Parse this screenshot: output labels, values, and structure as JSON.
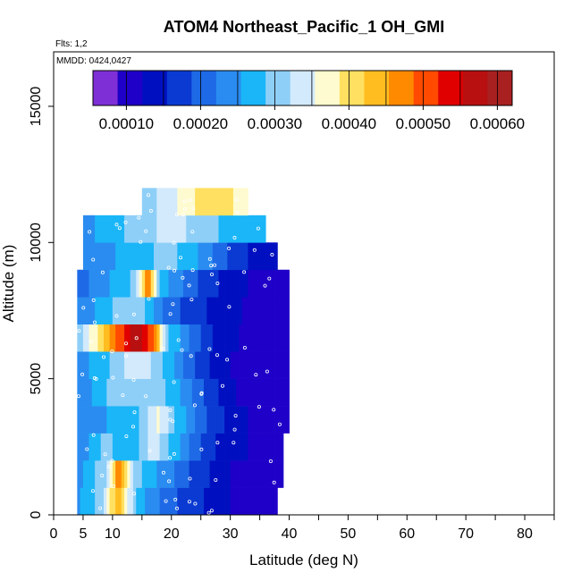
{
  "chart_data": {
    "type": "heatmap",
    "title": "ATOM4 Northeast_Pacific_1 OH_GMI",
    "notes": [
      "Flts: 1,2",
      "MMDD: 0424,0427"
    ],
    "xlabel": "Latitude (deg N)",
    "ylabel": "Altitude (m)",
    "xlim": [
      0,
      85
    ],
    "ylim": [
      0,
      17000
    ],
    "x_ticks": [
      0,
      5,
      10,
      20,
      30,
      40,
      50,
      60,
      70,
      80
    ],
    "y_ticks": [
      0,
      5000,
      10000,
      15000
    ],
    "colorbar": {
      "min": 5e-05,
      "max": 0.00062,
      "ticks": [
        "0.00010",
        "0.00020",
        "0.00030",
        "0.00040",
        "0.00050",
        "0.00060"
      ],
      "tick_values": [
        0.0001,
        0.0002,
        0.0003,
        0.0004,
        0.0005,
        0.0006
      ],
      "colors": [
        "#7f2fd6",
        "#1f00c8",
        "#0010c0",
        "#0a3ad2",
        "#1e6ae6",
        "#2a8cf0",
        "#1ab6f8",
        "#8ecff8",
        "#d2eafc",
        "#fffbd0",
        "#ffe060",
        "#ffbd20",
        "#ff8a00",
        "#ff4a00",
        "#e00000",
        "#b81010",
        "#a82020"
      ],
      "boundaries": [
        5.5e-05,
        0.0001,
        0.00015,
        0.0002,
        0.00025,
        0.0003,
        0.00035,
        0.0004,
        0.00045,
        0.0005,
        0.00055,
        0.0006,
        0.00062
      ]
    },
    "profiles": [
      {
        "alt": [
          0,
          1000
        ],
        "lat": [
          4,
          38
        ],
        "values": [
          [
            4,
            0.00025
          ],
          [
            8,
            0.0003
          ],
          [
            11,
            0.00045
          ],
          [
            14,
            0.00028
          ],
          [
            18,
            0.00022
          ],
          [
            22,
            0.00018
          ],
          [
            26,
            0.00015
          ],
          [
            30,
            0.00012
          ],
          [
            34,
            0.0001
          ],
          [
            38,
            9e-05
          ]
        ]
      },
      {
        "alt": [
          1000,
          2000
        ],
        "lat": [
          4,
          39
        ],
        "values": [
          [
            4,
            0.00024
          ],
          [
            9,
            0.00032
          ],
          [
            11,
            0.00048
          ],
          [
            14,
            0.0003
          ],
          [
            18,
            0.00025
          ],
          [
            22,
            0.0002
          ],
          [
            26,
            0.00016
          ],
          [
            30,
            0.00012
          ],
          [
            34,
            0.0001
          ],
          [
            39,
            9e-05
          ]
        ]
      },
      {
        "alt": [
          2000,
          3000
        ],
        "lat": [
          4,
          39
        ],
        "values": [
          [
            4,
            0.00022
          ],
          [
            9,
            0.0003
          ],
          [
            13,
            0.00026
          ],
          [
            17,
            0.00034
          ],
          [
            19,
            0.0003
          ],
          [
            24,
            0.0002
          ],
          [
            28,
            0.00015
          ],
          [
            33,
            0.00012
          ],
          [
            39,
            0.0001
          ]
        ]
      },
      {
        "alt": [
          3000,
          4000
        ],
        "lat": [
          4,
          40
        ],
        "values": [
          [
            4,
            0.00022
          ],
          [
            8,
            0.00025
          ],
          [
            14,
            0.00028
          ],
          [
            18,
            0.00036
          ],
          [
            20,
            0.0003
          ],
          [
            25,
            0.0002
          ],
          [
            30,
            0.00014
          ],
          [
            35,
            0.00011
          ],
          [
            40,
            0.0001
          ]
        ]
      },
      {
        "alt": [
          4000,
          5000
        ],
        "lat": [
          4,
          40
        ],
        "values": [
          [
            4,
            0.00022
          ],
          [
            8,
            0.00028
          ],
          [
            14,
            0.00032
          ],
          [
            18,
            0.0003
          ],
          [
            22,
            0.00025
          ],
          [
            26,
            0.00018
          ],
          [
            30,
            0.00013
          ],
          [
            34,
            0.0001
          ],
          [
            40,
            9e-05
          ]
        ]
      },
      {
        "alt": [
          5000,
          6000
        ],
        "lat": [
          4,
          40
        ],
        "values": [
          [
            4,
            0.00024
          ],
          [
            9,
            0.00028
          ],
          [
            14,
            0.00035
          ],
          [
            18,
            0.0003
          ],
          [
            22,
            0.00022
          ],
          [
            26,
            0.00016
          ],
          [
            30,
            0.00012
          ],
          [
            34,
            0.0001
          ],
          [
            40,
            9e-05
          ]
        ]
      },
      {
        "alt": [
          6000,
          7000
        ],
        "lat": [
          4,
          40
        ],
        "values": [
          [
            4,
            0.0003
          ],
          [
            8,
            0.0004
          ],
          [
            11,
            0.0005
          ],
          [
            14,
            0.00058
          ],
          [
            17,
            0.0005
          ],
          [
            19,
            0.0003
          ],
          [
            24,
            0.0002
          ],
          [
            28,
            0.00014
          ],
          [
            34,
            0.00011
          ],
          [
            40,
            0.0001
          ]
        ]
      },
      {
        "alt": [
          7000,
          8000
        ],
        "lat": [
          4,
          40
        ],
        "values": [
          [
            4,
            0.00022
          ],
          [
            9,
            0.00028
          ],
          [
            14,
            0.00032
          ],
          [
            17,
            0.00025
          ],
          [
            20,
            0.0002
          ],
          [
            25,
            0.00016
          ],
          [
            30,
            0.00013
          ],
          [
            35,
            0.00011
          ],
          [
            40,
            0.0001
          ]
        ]
      },
      {
        "alt": [
          8000,
          9000
        ],
        "lat": [
          4,
          40
        ],
        "values": [
          [
            4,
            0.0002
          ],
          [
            9,
            0.00025
          ],
          [
            14,
            0.0003
          ],
          [
            16,
            0.00048
          ],
          [
            18,
            0.00028
          ],
          [
            22,
            0.00022
          ],
          [
            27,
            0.00016
          ],
          [
            33,
            0.00012
          ],
          [
            40,
            0.00011
          ]
        ]
      },
      {
        "alt": [
          9000,
          10000
        ],
        "lat": [
          5,
          38
        ],
        "values": [
          [
            5,
            0.00022
          ],
          [
            10,
            0.00025
          ],
          [
            15,
            0.00028
          ],
          [
            20,
            0.0003
          ],
          [
            25,
            0.00025
          ],
          [
            30,
            0.00018
          ],
          [
            35,
            0.00014
          ],
          [
            38,
            0.00012
          ]
        ]
      },
      {
        "alt": [
          10000,
          11000
        ],
        "lat": [
          5,
          36
        ],
        "values": [
          [
            5,
            0.00024
          ],
          [
            10,
            0.00028
          ],
          [
            15,
            0.0003
          ],
          [
            20,
            0.00034
          ],
          [
            25,
            0.0003
          ],
          [
            30,
            0.00028
          ],
          [
            36,
            0.00026
          ]
        ]
      },
      {
        "alt": [
          11000,
          12000
        ],
        "lat": [
          15,
          33
        ],
        "values": [
          [
            15,
            0.0003
          ],
          [
            20,
            0.00034
          ],
          [
            25,
            0.0004
          ],
          [
            28,
            0.00042
          ],
          [
            33,
            0.00036
          ]
        ]
      }
    ]
  }
}
